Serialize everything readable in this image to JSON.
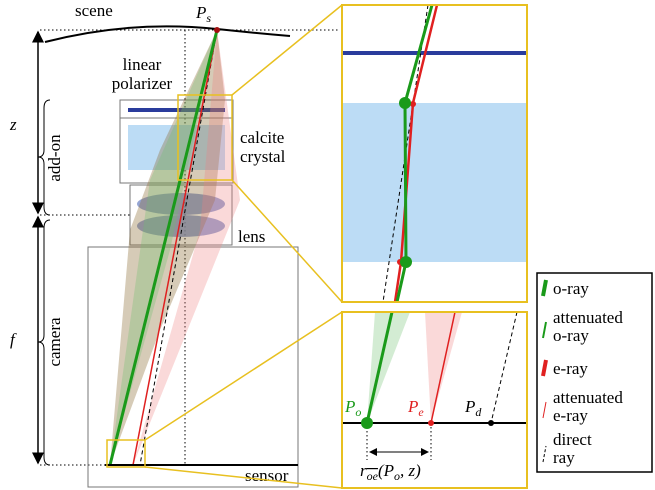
{
  "scene": {
    "label": "scene",
    "point": {
      "base": "P",
      "sub": "s"
    }
  },
  "addon": {
    "polarizer": [
      "linear",
      "polarizer"
    ],
    "crystal": [
      "calcite",
      "crystal"
    ],
    "label": "add-on",
    "distance": "z"
  },
  "camera": {
    "lens": "lens",
    "label": "camera",
    "distance": "f",
    "sensor": "sensor"
  },
  "zoom": {
    "points": [
      {
        "base": "P",
        "sub": "o"
      },
      {
        "base": "P",
        "sub": "e"
      },
      {
        "base": "P",
        "sub": "d"
      }
    ],
    "offset": [
      "r",
      "oe",
      "(P",
      "o",
      ", z)"
    ]
  },
  "legend": [
    [
      "o-ray"
    ],
    [
      "attenuated",
      "o-ray"
    ],
    [
      "e-ray"
    ],
    [
      "attenuated",
      "e-ray"
    ],
    [
      "direct",
      "ray"
    ]
  ]
}
